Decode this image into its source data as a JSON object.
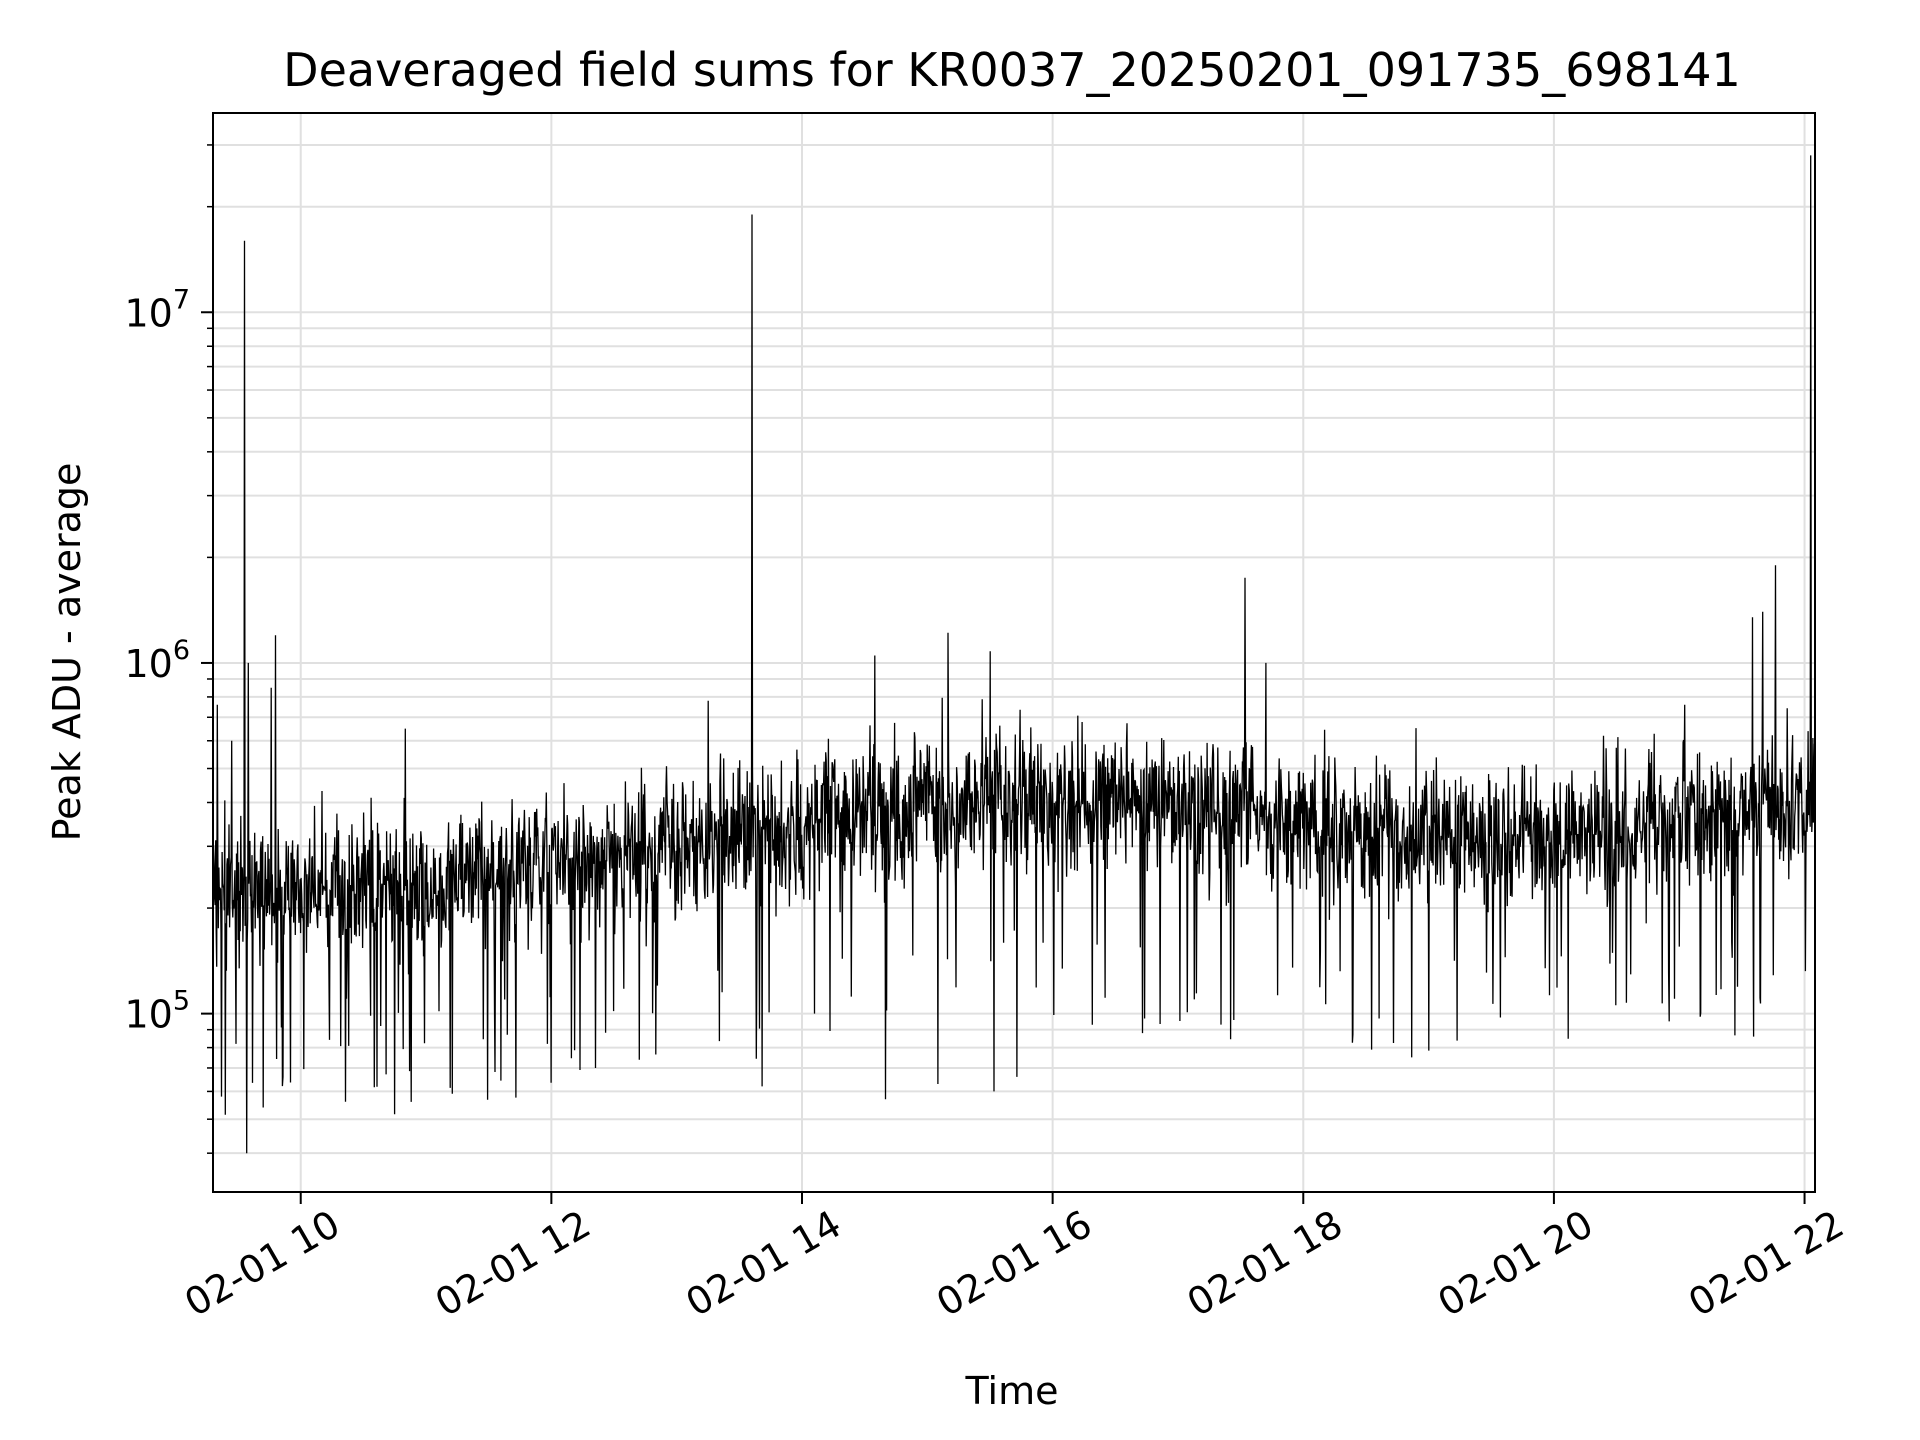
{
  "chart_data": {
    "type": "line",
    "title": "Deaveraged field sums for KR0037_20250201_091735_698141",
    "xlabel": "Time",
    "ylabel": "Peak ADU - average",
    "x_range": [
      "02-01 09:18",
      "02-01 22:05"
    ],
    "y_scale": "log",
    "ylim": [
      31000,
      37000000
    ],
    "grid": true,
    "line_color": "#000000",
    "grid_color": "#e0e0e0",
    "x_ticks": [
      {
        "t": "02-01 10:00",
        "label": "02-01 10"
      },
      {
        "t": "02-01 12:00",
        "label": "02-01 12"
      },
      {
        "t": "02-01 14:00",
        "label": "02-01 14"
      },
      {
        "t": "02-01 16:00",
        "label": "02-01 16"
      },
      {
        "t": "02-01 18:00",
        "label": "02-01 18"
      },
      {
        "t": "02-01 20:00",
        "label": "02-01 20"
      },
      {
        "t": "02-01 22:00",
        "label": "02-01 22"
      }
    ],
    "y_ticks": [
      {
        "value": 100000,
        "base": "10",
        "exp": "5"
      },
      {
        "value": 1000000,
        "base": "10",
        "exp": "6"
      },
      {
        "value": 10000000,
        "base": "10",
        "exp": "7"
      }
    ],
    "series": [
      {
        "baseline": [
          {
            "t": "02-01 09:18",
            "value": 220000
          },
          {
            "t": "02-01 11:00",
            "value": 230000
          },
          {
            "t": "02-01 12:30",
            "value": 280000
          },
          {
            "t": "02-01 14:00",
            "value": 350000
          },
          {
            "t": "02-01 15:30",
            "value": 400000
          },
          {
            "t": "02-01 17:00",
            "value": 400000
          },
          {
            "t": "02-01 18:30",
            "value": 320000
          },
          {
            "t": "02-01 20:00",
            "value": 330000
          },
          {
            "t": "02-01 22:05",
            "value": 400000
          }
        ],
        "peaks": [
          {
            "t": "02-01 09:20",
            "value": 760000
          },
          {
            "t": "02-01 09:27",
            "value": 600000
          },
          {
            "t": "02-01 09:33",
            "value": 16000000
          },
          {
            "t": "02-01 09:35",
            "value": 1000000
          },
          {
            "t": "02-01 09:48",
            "value": 1200000
          },
          {
            "t": "02-01 09:46",
            "value": 850000
          },
          {
            "t": "02-01 10:50",
            "value": 650000
          },
          {
            "t": "02-01 13:36",
            "value": 19000000
          },
          {
            "t": "02-01 13:15",
            "value": 780000
          },
          {
            "t": "02-01 14:35",
            "value": 1050000
          },
          {
            "t": "02-01 15:10",
            "value": 1220000
          },
          {
            "t": "02-01 15:30",
            "value": 1080000
          },
          {
            "t": "02-01 17:32",
            "value": 1750000
          },
          {
            "t": "02-01 17:42",
            "value": 1000000
          },
          {
            "t": "02-01 21:35",
            "value": 1350000
          },
          {
            "t": "02-01 21:40",
            "value": 1400000
          },
          {
            "t": "02-01 21:46",
            "value": 1900000
          },
          {
            "t": "02-01 22:03",
            "value": 28000000
          }
        ],
        "troughs": [
          {
            "t": "02-01 09:22",
            "value": 58000
          },
          {
            "t": "02-01 09:29",
            "value": 82000
          },
          {
            "t": "02-01 09:34",
            "value": 40000
          },
          {
            "t": "02-01 09:42",
            "value": 54000
          },
          {
            "t": "02-01 10:53",
            "value": 56000
          },
          {
            "t": "02-01 11:58",
            "value": 82000
          },
          {
            "t": "02-01 12:21",
            "value": 70000
          },
          {
            "t": "02-01 13:41",
            "value": 62000
          },
          {
            "t": "02-01 14:40",
            "value": 57000
          },
          {
            "t": "02-01 15:05",
            "value": 63000
          },
          {
            "t": "02-01 15:32",
            "value": 60000
          },
          {
            "t": "02-01 15:43",
            "value": 66000
          },
          {
            "t": "02-01 16:43",
            "value": 88000
          },
          {
            "t": "02-01 18:52",
            "value": 75000
          },
          {
            "t": "02-01 21:10",
            "value": 98000
          }
        ]
      }
    ]
  }
}
